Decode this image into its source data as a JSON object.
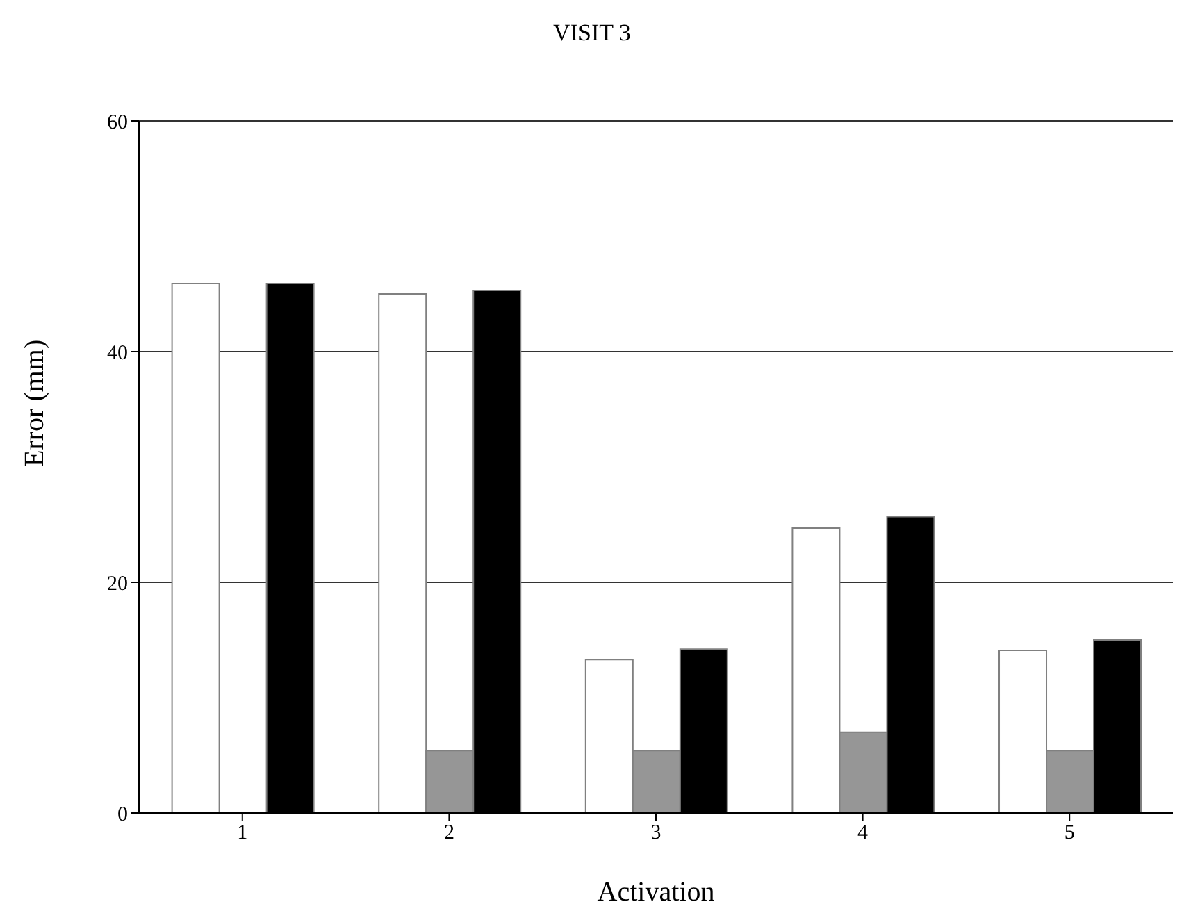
{
  "chart_data": {
    "type": "bar",
    "title": "VISIT 3",
    "xlabel": "Activation",
    "ylabel": "Error (mm)",
    "categories": [
      "1",
      "2",
      "3",
      "4",
      "5"
    ],
    "series": [
      {
        "color": "#ffffff",
        "values": [
          45.9,
          45.0,
          13.3,
          24.7,
          14.1
        ]
      },
      {
        "color": "#969696",
        "values": [
          null,
          5.4,
          5.4,
          7.0,
          5.4
        ]
      },
      {
        "color": "#000000",
        "values": [
          45.9,
          45.3,
          14.2,
          25.7,
          15.0
        ]
      }
    ],
    "ylim": [
      0,
      60
    ],
    "yticks": [
      0,
      20,
      40,
      60
    ],
    "grid": "y",
    "legend": false
  }
}
